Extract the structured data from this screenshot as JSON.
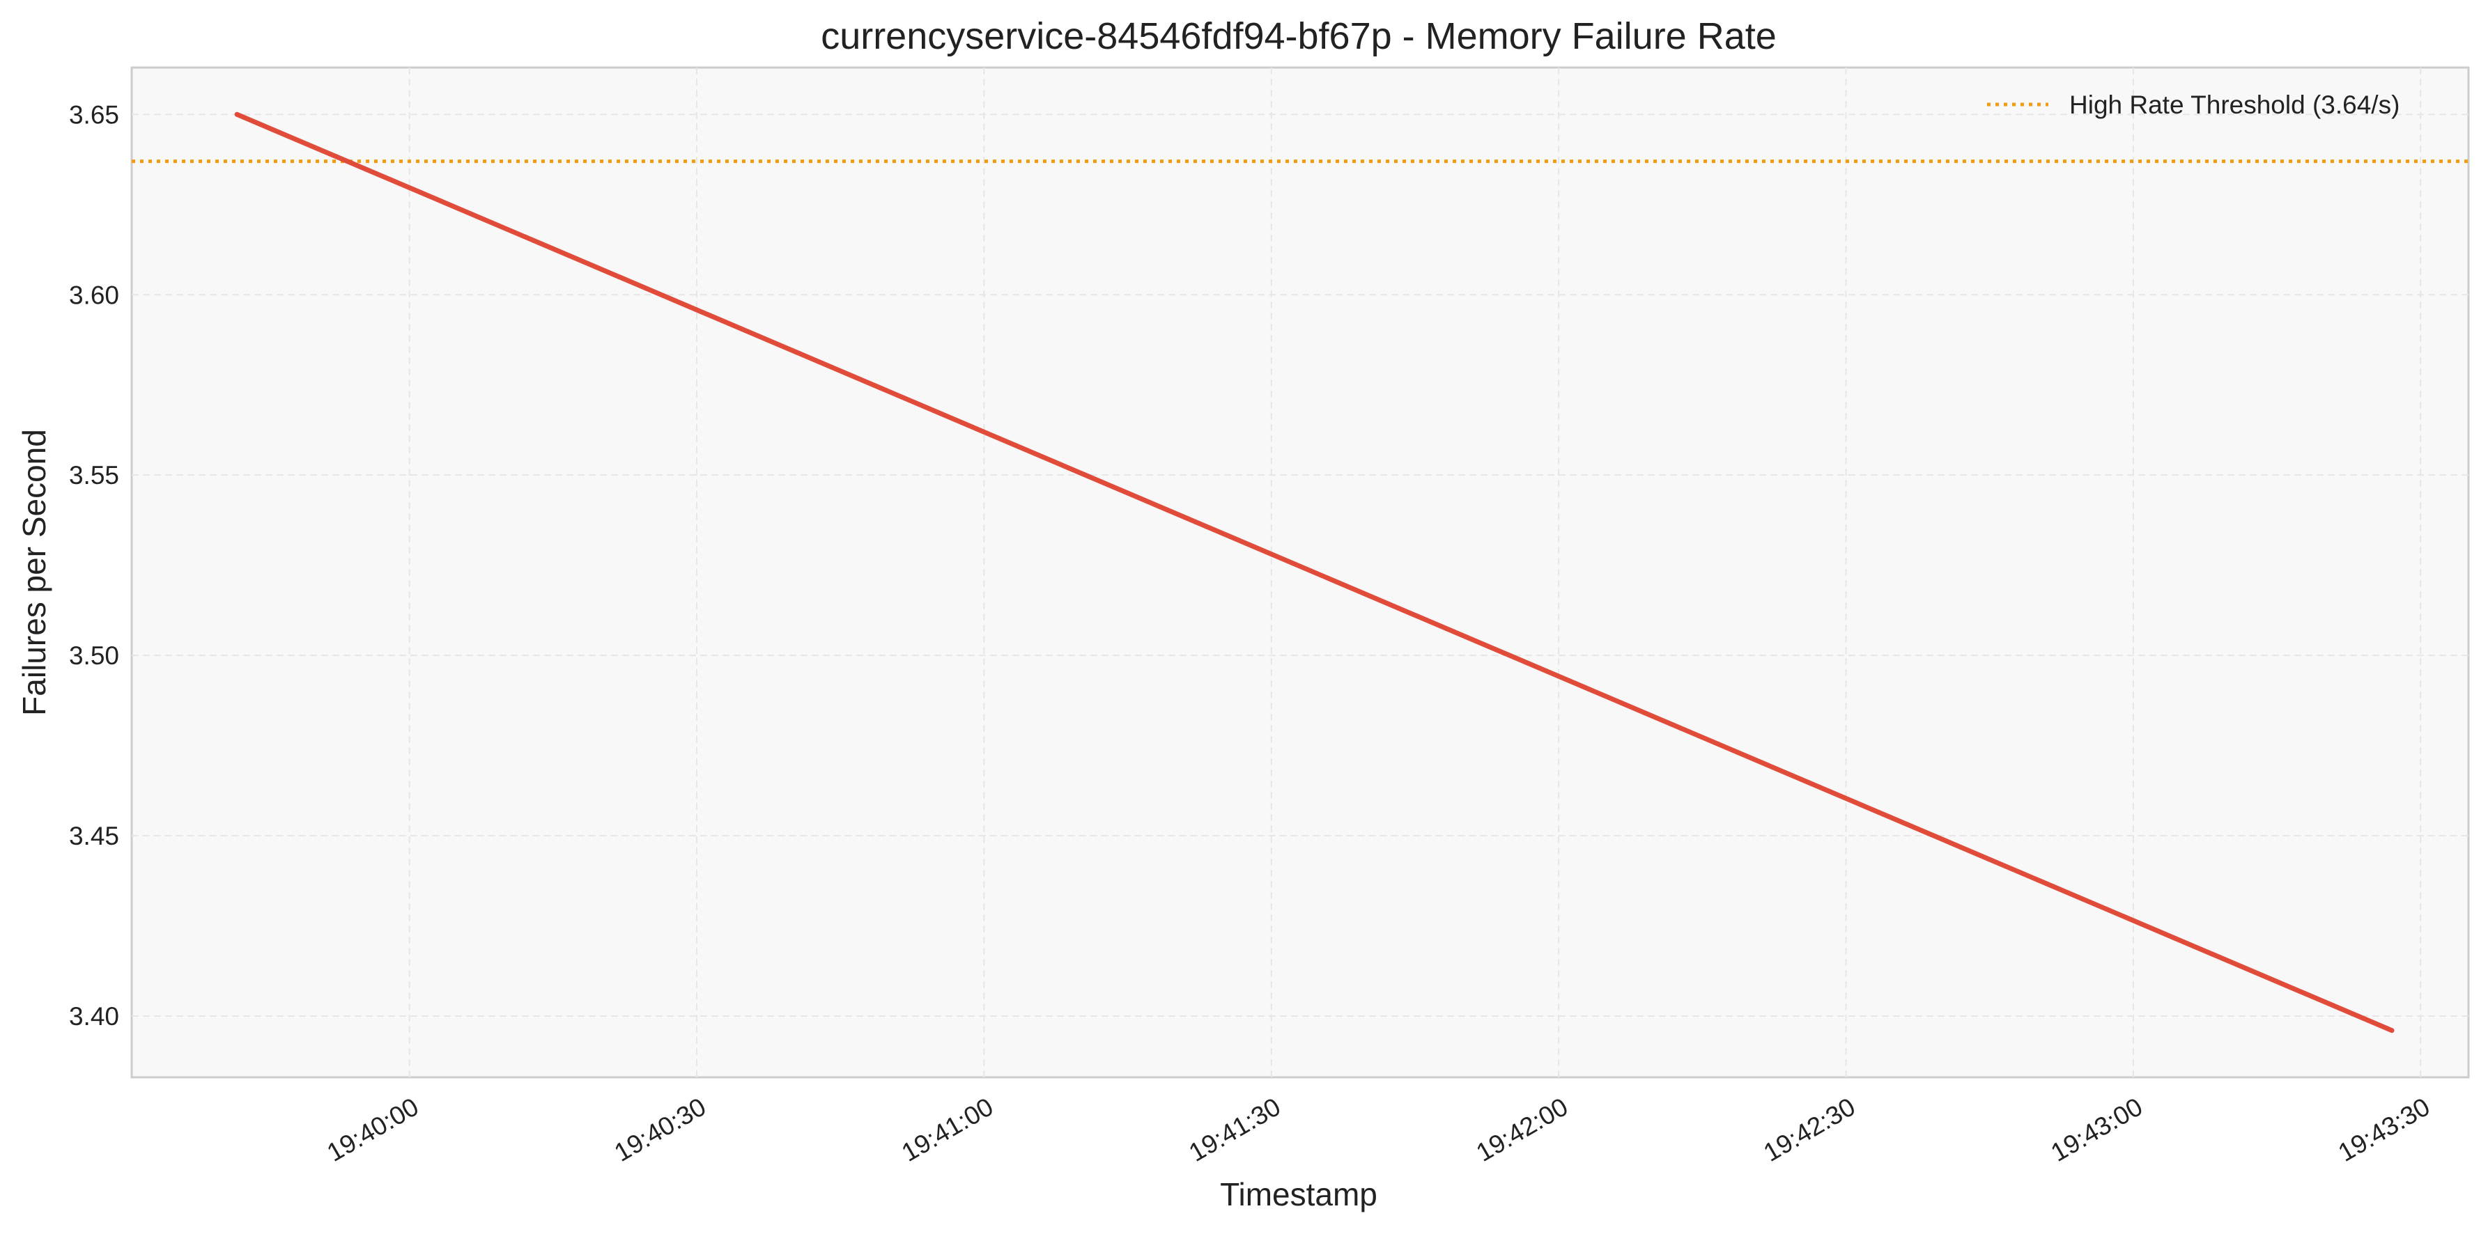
{
  "chart_data": {
    "type": "line",
    "title": "currencyservice-84546fdf94-bf67p - Memory Failure Rate",
    "xlabel": "Timestamp",
    "ylabel": "Failures per Second",
    "x_type": "time",
    "x_ticks": [
      "19:40:00",
      "19:40:30",
      "19:41:00",
      "19:41:30",
      "19:42:00",
      "19:42:30",
      "19:43:00",
      "19:43:30"
    ],
    "xlim": [
      "19:39:31",
      "19:43:35"
    ],
    "y_ticks": [
      "3.40",
      "3.45",
      "3.50",
      "3.55",
      "3.60",
      "3.65"
    ],
    "ylim": [
      3.383,
      3.663
    ],
    "grid": true,
    "legend_position": "top-right",
    "series": [
      {
        "color": "#e04b3a",
        "points": [
          {
            "x": "19:39:42",
            "y": 3.65
          },
          {
            "x": "19:43:27",
            "y": 3.396
          }
        ]
      }
    ],
    "threshold": {
      "label": "High Rate Threshold (3.64/s)",
      "value": 3.637,
      "color": "#f39c12",
      "style": "dotted"
    }
  }
}
